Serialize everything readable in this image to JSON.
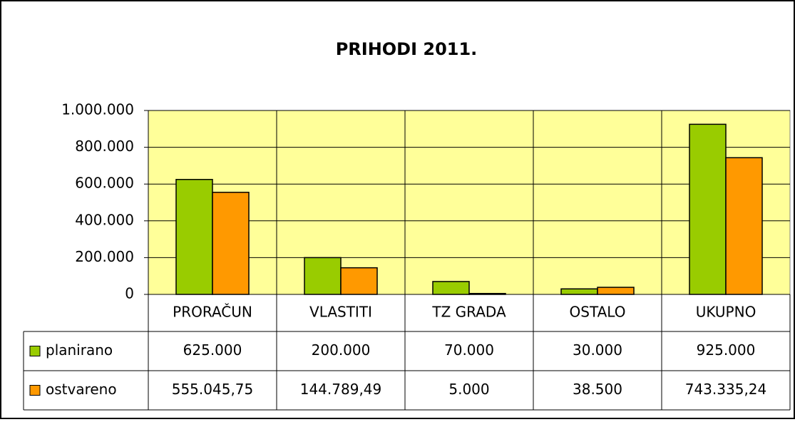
{
  "chart_data": {
    "type": "bar",
    "title": "PRIHODI 2011.",
    "categories": [
      "PRORAČUN",
      "VLASTITI",
      "TZ GRADA",
      "OSTALO",
      "UKUPNO"
    ],
    "series": [
      {
        "name": "planirano",
        "color": "#99cc00",
        "values": [
          625000,
          200000,
          70000,
          30000,
          925000
        ],
        "value_labels": [
          "625.000",
          "200.000",
          "70.000",
          "30.000",
          "925.000"
        ]
      },
      {
        "name": "ostvareno",
        "color": "#ff9900",
        "values": [
          555045.75,
          144789.49,
          5000,
          38500,
          743335.24
        ],
        "value_labels": [
          "555.045,75",
          "144.789,49",
          "5.000",
          "38.500",
          "743.335,24"
        ]
      }
    ],
    "ylim": [
      0,
      1000000
    ],
    "yticks": [
      0,
      {
        "value": 200000,
        "label": "200.000"
      },
      {
        "value": 400000,
        "label": "400.000"
      },
      {
        "value": 600000,
        "label": "600.000"
      },
      {
        "value": 800000,
        "label": "800.000"
      },
      {
        "value": 1000000,
        "label": "1.000.000"
      }
    ],
    "grid": true
  }
}
